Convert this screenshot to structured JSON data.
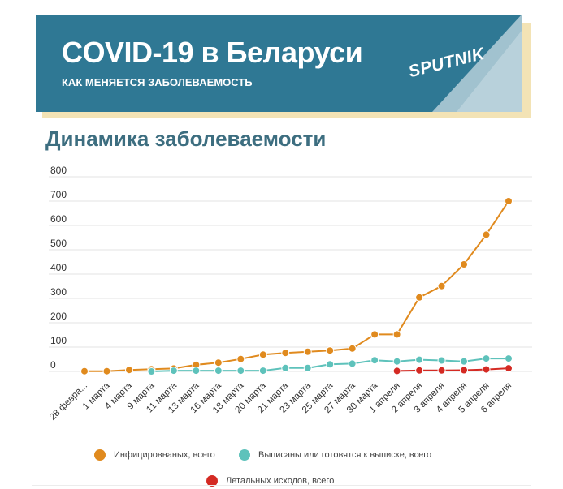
{
  "banner": {
    "title": "COVID-19 в Беларуси",
    "subtitle": "КАК МЕНЯЕТСЯ ЗАБОЛЕВАЕМОСТЬ",
    "logo_text": "SPUTNIK"
  },
  "chart_title": "Динамика заболеваемости",
  "chart_data": {
    "type": "line",
    "title": "Динамика заболеваемости",
    "categories": [
      "28 февраля",
      "1 марта",
      "4 марта",
      "9 марта",
      "11 марта",
      "13 марта",
      "16 марта",
      "18 марта",
      "20 марта",
      "21 марта",
      "23 марта",
      "25 марта",
      "27 марта",
      "30 марта",
      "1 апреля",
      "2 апреля",
      "3 апреля",
      "4 апреля",
      "5 апреля",
      "6 апреля"
    ],
    "tick_labels": [
      "28 февра...",
      "1 марта",
      "4 марта",
      "9 марта",
      "11 марта",
      "13 марта",
      "16 марта",
      "18 марта",
      "20 марта",
      "21 марта",
      "23 марта",
      "25 марта",
      "27 марта",
      "30 марта",
      "1 апреля",
      "2 апреля",
      "3 апреля",
      "4 апреля",
      "5 апреля",
      "6 апреля"
    ],
    "ylim": [
      0,
      800
    ],
    "yticks": [
      0,
      100,
      200,
      300,
      400,
      500,
      600,
      700,
      800
    ],
    "grid": true,
    "legend_position": "bottom",
    "series": [
      {
        "name": "Инфицировнаных, всего",
        "color": "#e08a1e",
        "values": [
          1,
          1,
          6,
          9,
          12,
          27,
          36,
          51,
          69,
          76,
          81,
          86,
          94,
          152,
          152,
          304,
          351,
          440,
          562,
          700
        ]
      },
      {
        "name": "Выписаны или готовятся к выписке, всего",
        "color": "#5ec2bb",
        "values": [
          null,
          null,
          null,
          0,
          3,
          3,
          3,
          3,
          3,
          14,
          14,
          29,
          32,
          46,
          41,
          48,
          45,
          41,
          53,
          53
        ]
      },
      {
        "name": "Летальных исходов, всего",
        "color": "#d42a23",
        "values": [
          null,
          null,
          null,
          null,
          null,
          null,
          null,
          null,
          null,
          null,
          null,
          null,
          null,
          null,
          2,
          4,
          4,
          5,
          8,
          13
        ]
      }
    ]
  },
  "colors": {
    "banner": "#2f7894",
    "banner_shadow": "#f3e3b5",
    "title_text": "#3d6e80",
    "grid": "#e3e3e3"
  }
}
